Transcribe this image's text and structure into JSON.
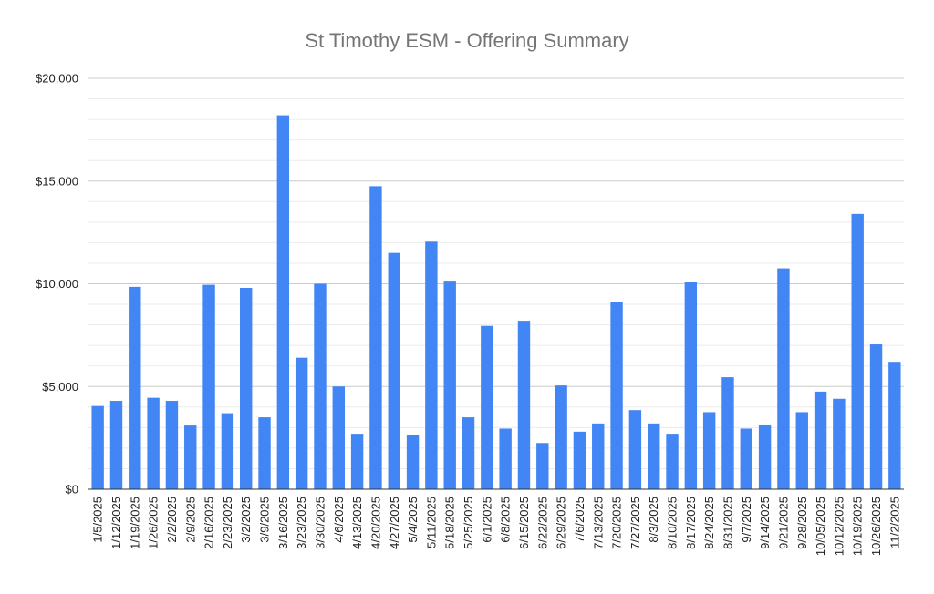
{
  "chart_data": {
    "type": "bar",
    "title": "St Timothy ESM - Offering Summary",
    "xlabel": "",
    "ylabel": "",
    "ylim": [
      0,
      20000
    ],
    "y_ticks": [
      0,
      5000,
      10000,
      15000,
      20000
    ],
    "y_tick_labels": [
      "$0",
      "$5,000",
      "$10,000",
      "$15,000",
      "$20,000"
    ],
    "grid": true,
    "legend": "none",
    "bar_color": "#4285f4",
    "categories": [
      "1/5/2025",
      "1/12/2025",
      "1/19/2025",
      "1/26/2025",
      "2/2/2025",
      "2/9/2025",
      "2/16/2025",
      "2/23/2025",
      "3/2/2025",
      "3/9/2025",
      "3/16/2025",
      "3/23/2025",
      "3/30/2025",
      "4/6/2025",
      "4/13/2025",
      "4/20/2025",
      "4/27/2025",
      "5/4/2025",
      "5/11/2025",
      "5/18/2025",
      "5/25/2025",
      "6/1/2025",
      "6/8/2025",
      "6/15/2025",
      "6/22/2025",
      "6/29/2025",
      "7/6/2025",
      "7/13/2025",
      "7/20/2025",
      "7/27/2025",
      "8/3/2025",
      "8/10/2025",
      "8/17/2025",
      "8/24/2025",
      "8/31/2025",
      "9/7/2025",
      "9/14/2025",
      "9/21/2025",
      "9/28/2025",
      "10/05/2025",
      "10/12/2025",
      "10/19/2025",
      "10/26/2025",
      "11/2/2025"
    ],
    "values": [
      4050,
      4300,
      9850,
      4450,
      4300,
      3100,
      9950,
      3700,
      9800,
      3500,
      18200,
      6400,
      10000,
      5000,
      2700,
      14750,
      11500,
      2650,
      12050,
      10150,
      3500,
      7950,
      2950,
      8200,
      2250,
      5050,
      2800,
      3200,
      9100,
      3850,
      3200,
      2700,
      10100,
      3750,
      5450,
      2950,
      3150,
      10750,
      3750,
      4750,
      4400,
      13400,
      7050,
      6200
    ]
  }
}
